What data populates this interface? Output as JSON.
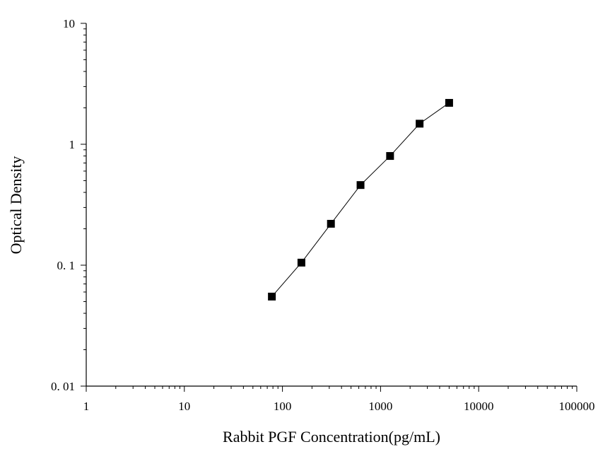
{
  "chart_data": {
    "type": "scatter",
    "title": "",
    "xlabel": "Rabbit PGF Concentration(pg/mL)",
    "ylabel": "Optical Density",
    "x_scale": "log",
    "y_scale": "log",
    "xlim": [
      1,
      100000
    ],
    "ylim": [
      0.01,
      10
    ],
    "x_ticks": [
      1,
      10,
      100,
      1000,
      10000,
      100000
    ],
    "x_tick_labels": [
      "1",
      "10",
      "100",
      "1000",
      "10000",
      "100000"
    ],
    "y_ticks": [
      0.01,
      0.1,
      1,
      10
    ],
    "y_tick_labels": [
      "0. 01",
      "0. 1",
      "1",
      "10"
    ],
    "grid": false,
    "legend": "none",
    "series": [
      {
        "x": [
          78,
          156,
          312,
          625,
          1250,
          2500,
          5000
        ],
        "y": [
          0.055,
          0.105,
          0.22,
          0.46,
          0.8,
          1.48,
          2.2
        ],
        "marker": "square",
        "line": true,
        "color": "#000000"
      }
    ]
  }
}
